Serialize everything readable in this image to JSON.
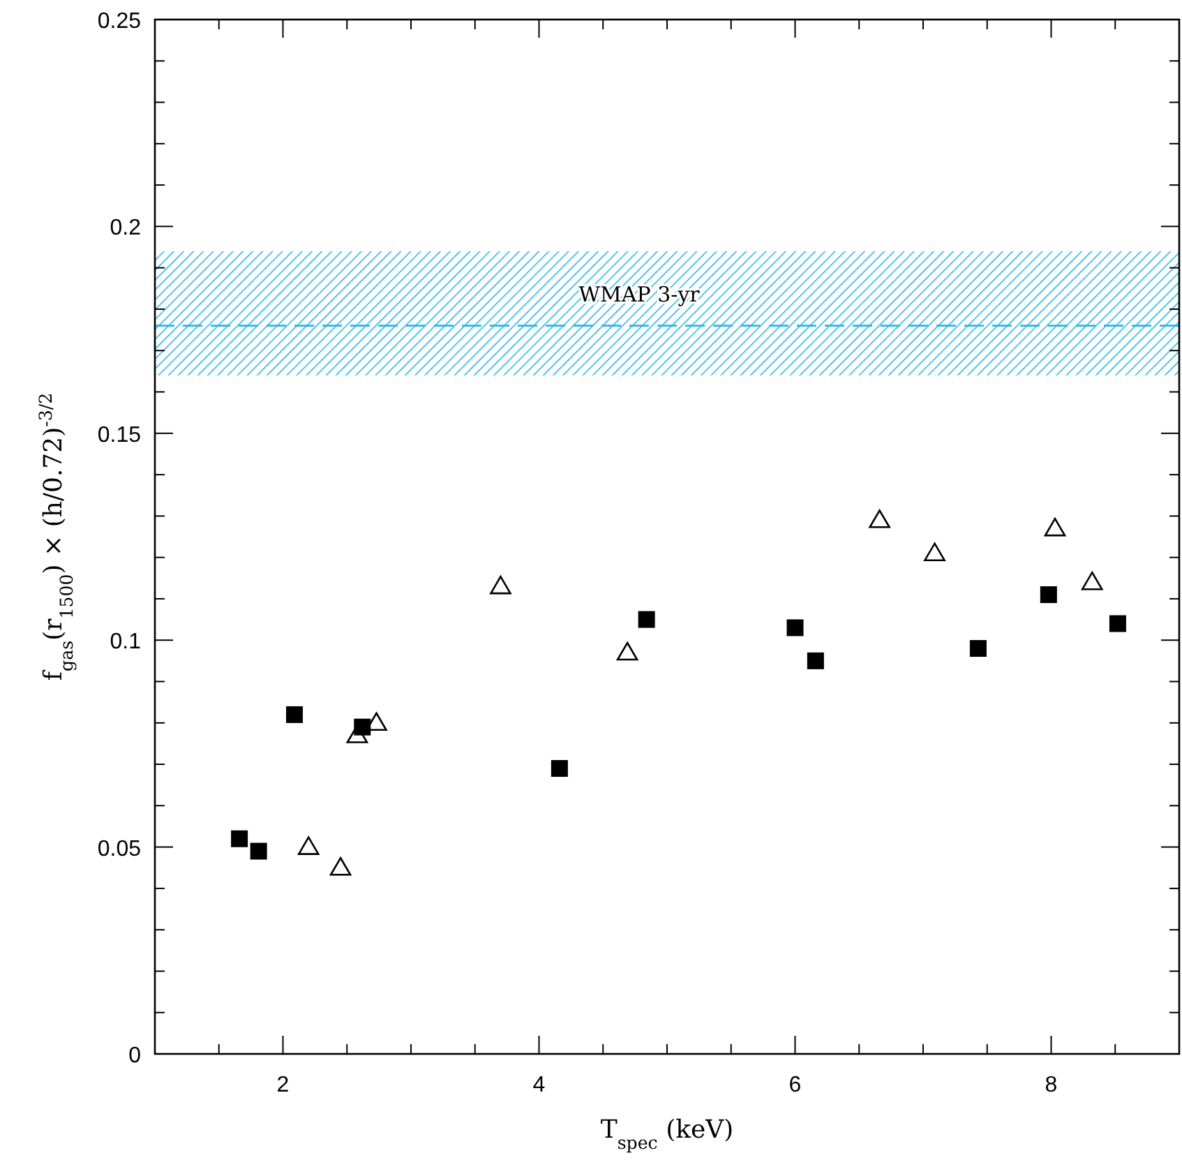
{
  "chart_data": {
    "type": "scatter",
    "xlabel": "T$_{spec}$ (keV)",
    "ylabel": "f$_{gas}$(r$_{1500}$) × (h/0.72)$^{-3/2}$",
    "xlim": [
      1,
      9
    ],
    "ylim": [
      0,
      0.25
    ],
    "xticks": [
      {
        "value": 1.5,
        "label": null
      },
      2,
      {
        "value": 2.5,
        "label": null
      },
      {
        "value": 3,
        "label": null
      },
      {
        "value": 3.5,
        "label": null
      },
      4,
      {
        "value": 4.5,
        "label": null
      },
      {
        "value": 5,
        "label": null
      },
      {
        "value": 5.5,
        "label": null
      },
      6,
      {
        "value": 6.5,
        "label": null
      },
      {
        "value": 7,
        "label": null
      },
      {
        "value": 7.5,
        "label": null
      },
      8,
      {
        "value": 8.5,
        "label": null
      }
    ],
    "yticks": [
      0,
      {
        "value": 0.01,
        "label": null
      },
      {
        "value": 0.02,
        "label": null
      },
      {
        "value": 0.03,
        "label": null
      },
      {
        "value": 0.04,
        "label": null
      },
      0.05,
      {
        "value": 0.06,
        "label": null
      },
      {
        "value": 0.07,
        "label": null
      },
      {
        "value": 0.08,
        "label": null
      },
      {
        "value": 0.09,
        "label": null
      },
      0.1,
      {
        "value": 0.11,
        "label": null
      },
      {
        "value": 0.12,
        "label": null
      },
      {
        "value": 0.13,
        "label": null
      },
      {
        "value": 0.14,
        "label": null
      },
      0.15,
      {
        "value": 0.16,
        "label": null
      },
      {
        "value": 0.17,
        "label": null
      },
      {
        "value": 0.18,
        "label": null
      },
      {
        "value": 0.19,
        "label": null
      },
      0.2,
      {
        "value": 0.21,
        "label": null
      },
      {
        "value": 0.22,
        "label": null
      },
      {
        "value": 0.23,
        "label": null
      },
      {
        "value": 0.24,
        "label": null
      },
      0.25
    ],
    "grid": false,
    "bands": [
      {
        "axis": "y",
        "from": 0.164,
        "to": 0.194,
        "label": "WMAP 3-yr",
        "color": "#29b6e6"
      }
    ],
    "ref_lines": [
      {
        "axis": "y",
        "value": 0.176,
        "color": "#29b6e6",
        "line_style": "dashed"
      }
    ],
    "series": [
      {
        "color": "#000000",
        "marker": "square",
        "x": [
          1.66,
          1.81,
          2.09,
          2.62,
          4.16,
          4.84,
          6.0,
          6.16,
          7.43,
          7.98,
          8.52
        ],
        "values": [
          0.052,
          0.049,
          0.082,
          0.079,
          0.069,
          0.105,
          0.103,
          0.095,
          0.098,
          0.111,
          0.104
        ]
      },
      {
        "color": "#000000",
        "marker": "triangle",
        "x": [
          2.2,
          2.45,
          2.58,
          2.73,
          3.7,
          4.69,
          6.66,
          7.09,
          8.03,
          8.32
        ],
        "values": [
          0.05,
          0.045,
          0.077,
          0.08,
          0.113,
          0.097,
          0.129,
          0.121,
          0.127,
          0.114
        ]
      }
    ]
  }
}
